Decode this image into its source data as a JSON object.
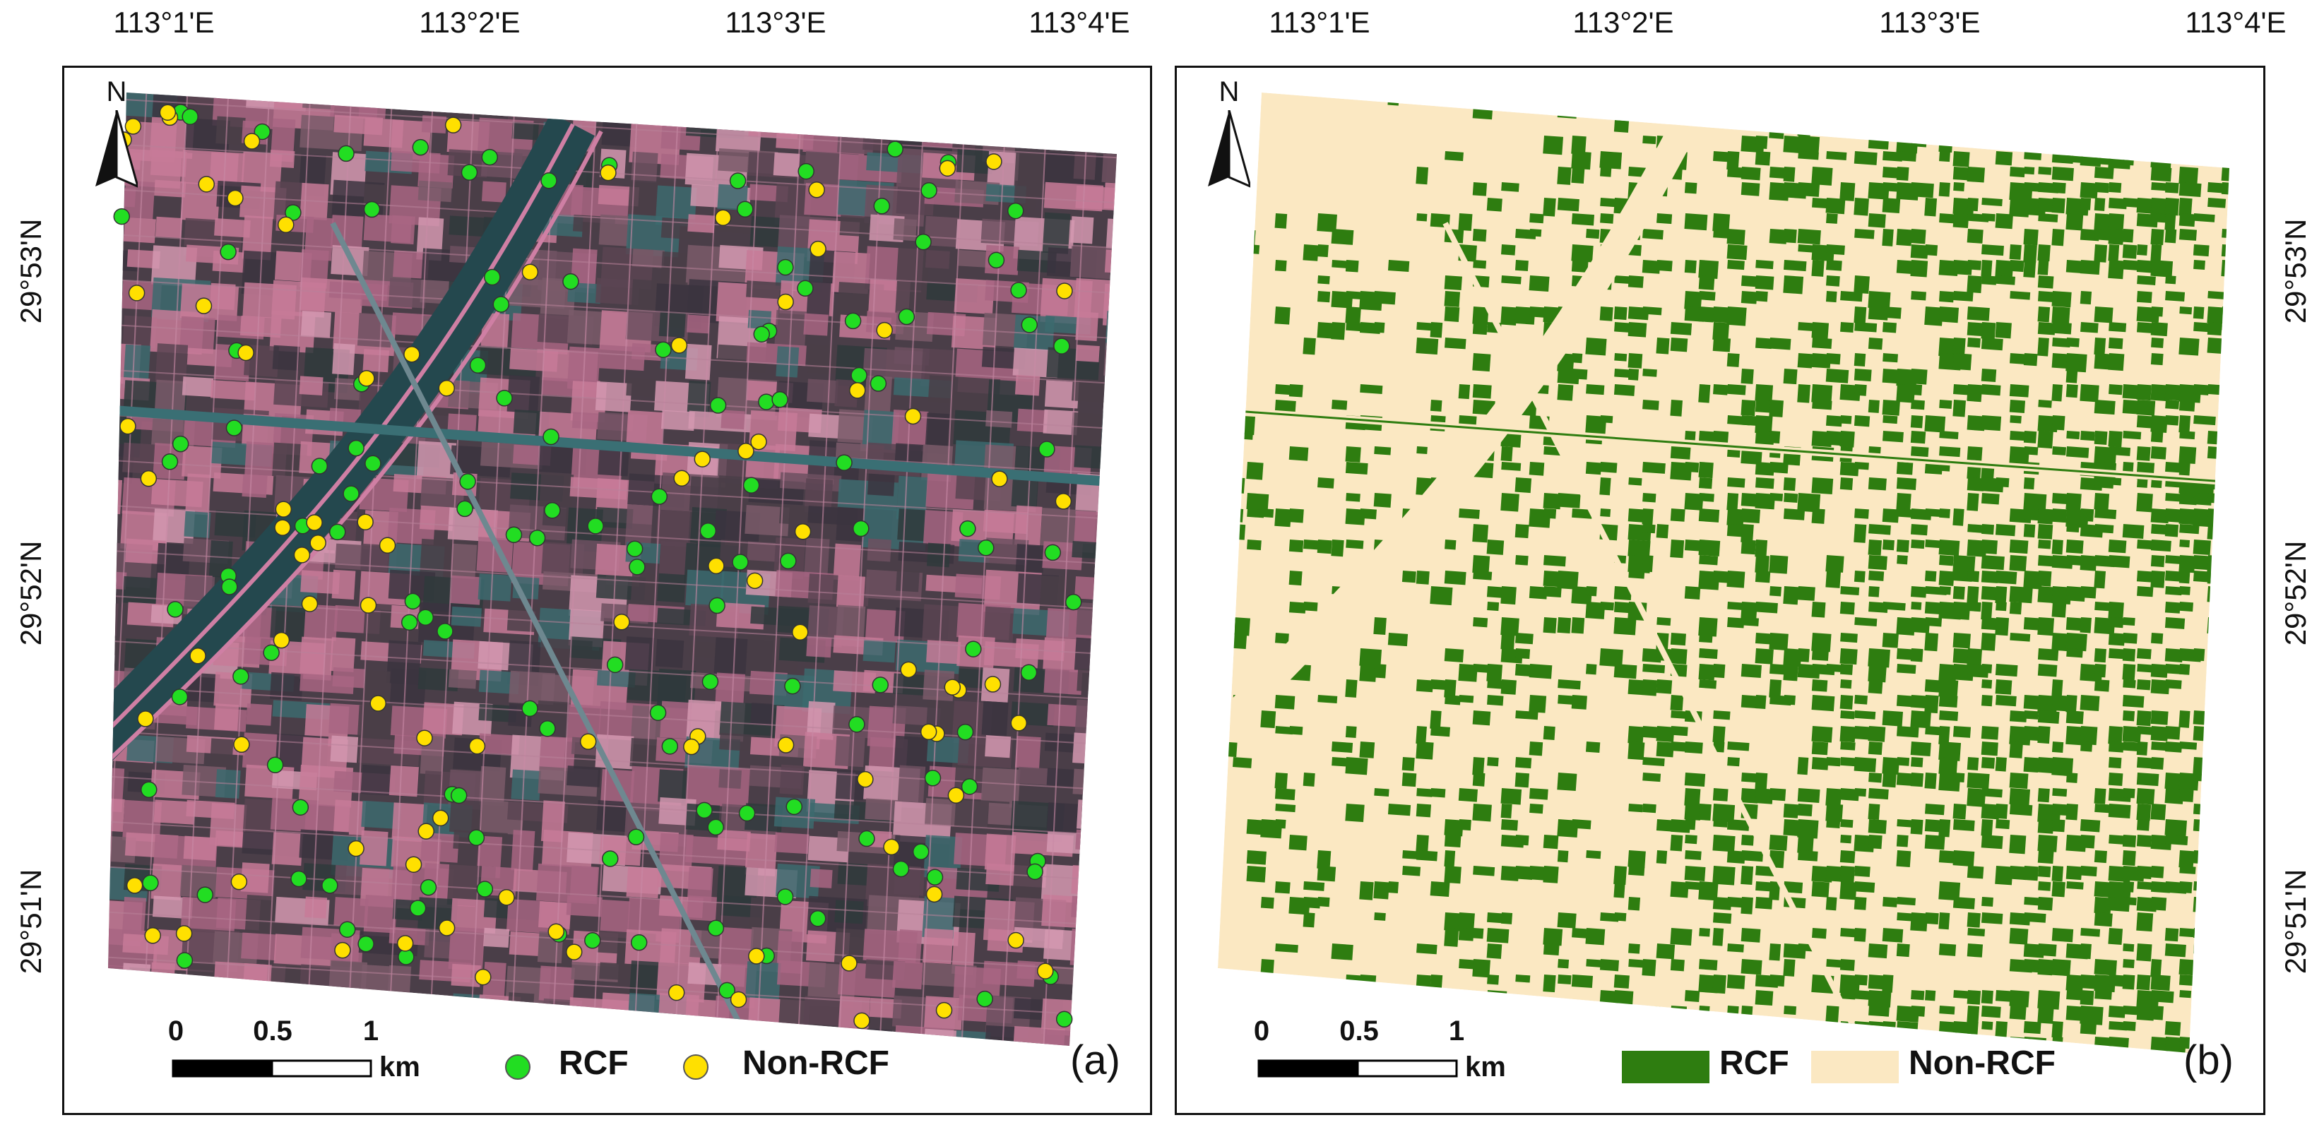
{
  "longitude_ticks": [
    "113°1'E",
    "113°2'E",
    "113°3'E",
    "113°4'E"
  ],
  "latitude_ticks_left": [
    "29°53'N",
    "29°52'N",
    "29°51'N"
  ],
  "latitude_ticks_right": [
    "29°53'N",
    "29°52'N",
    "29°51'N"
  ],
  "north_arrow_label": "N",
  "scale_bar": {
    "labels": [
      "0",
      "0.5",
      "1"
    ],
    "unit": "km"
  },
  "colors": {
    "rcf_point": "#22dd22",
    "non_rcf_point": "#ffe000",
    "rcf_class": "#2e7d10",
    "non_rcf_class": "#fbe8c2",
    "image_base": "#4a3e48",
    "field_pink": "#c77a98",
    "water_teal": "#3c6a6e"
  },
  "panel_a": {
    "tag": "(a)",
    "legend": [
      {
        "label": "RCF",
        "symbol": "circle",
        "color": "#22dd22"
      },
      {
        "label": "Non-RCF",
        "symbol": "circle",
        "color": "#ffe000"
      }
    ],
    "sample_point_counts": {
      "rcf": 140,
      "non_rcf": 95
    }
  },
  "panel_b": {
    "tag": "(b)",
    "legend": [
      {
        "label": "RCF",
        "symbol": "patch",
        "color": "#2e7d10"
      },
      {
        "label": "Non-RCF",
        "symbol": "patch",
        "color": "#fbe8c2"
      }
    ]
  }
}
